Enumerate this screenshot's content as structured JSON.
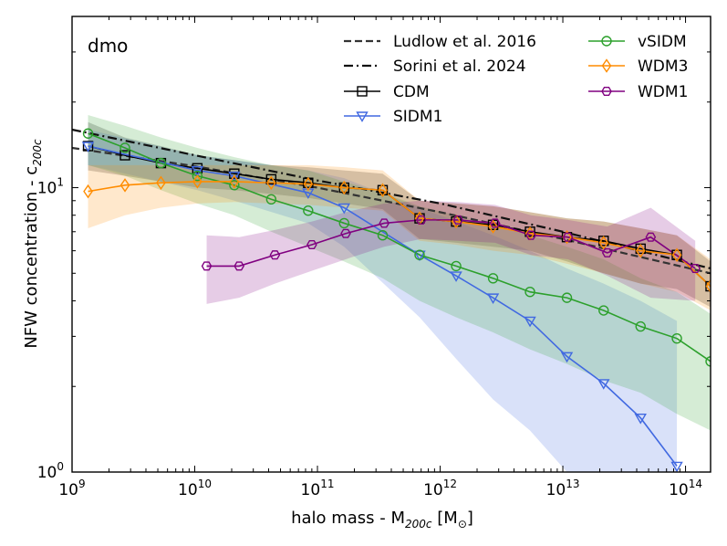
{
  "chart_data": {
    "type": "line",
    "panel_label": "dmo",
    "xlabel_main": "halo mass - M",
    "xlabel_sub": "200c",
    "xlabel_units": " [M",
    "xlabel_sun": "⊙",
    "xlabel_close": "]",
    "ylabel_main": "NFW concentration - c",
    "ylabel_sub": "200c",
    "xscale": "log",
    "yscale": "log",
    "xlim": [
      1000000000.0,
      160000000000000.0
    ],
    "ylim": [
      1,
      40
    ],
    "x_ticks": [
      {
        "value": 1000000000.0,
        "base": "10",
        "exp": "9"
      },
      {
        "value": 10000000000.0,
        "base": "10",
        "exp": "10"
      },
      {
        "value": 100000000000.0,
        "base": "10",
        "exp": "11"
      },
      {
        "value": 1000000000000.0,
        "base": "10",
        "exp": "12"
      },
      {
        "value": 10000000000000.0,
        "base": "10",
        "exp": "13"
      },
      {
        "value": 100000000000000.0,
        "base": "10",
        "exp": "14"
      }
    ],
    "y_ticks": [
      {
        "value": 1,
        "base": "10",
        "exp": "0"
      },
      {
        "value": 10,
        "base": "10",
        "exp": "1"
      }
    ],
    "reference_lines": [
      {
        "name": "Ludlow et al. 2016",
        "dash": "dashed",
        "color": "#333333",
        "x": [
          1000000000.0,
          10000000000.0,
          100000000000.0,
          1000000000000.0,
          10000000000000.0,
          160000000000000.0
        ],
        "y": [
          13.8,
          11.9,
          10.0,
          8.2,
          6.6,
          5.0
        ]
      },
      {
        "name": "Sorini et al. 2024",
        "dash": "dashdot",
        "color": "#111111",
        "x": [
          1000000000.0,
          10000000000.0,
          100000000000.0,
          1000000000000.0,
          10000000000000.0,
          160000000000000.0
        ],
        "y": [
          16.0,
          13.0,
          10.6,
          8.8,
          7.0,
          5.2
        ]
      }
    ],
    "series": [
      {
        "name": "CDM",
        "color": "#000000",
        "marker": "square",
        "x": [
          1350000000.0,
          2700000000.0,
          5300000000.0,
          10500000000.0,
          21000000000.0,
          42000000000.0,
          84000000000.0,
          165000000000.0,
          340000000000.0,
          680000000000.0,
          1350000000000.0,
          2700000000000.0,
          5400000000000.0,
          10800000000000.0,
          21500000000000.0,
          43000000000000.0,
          85000000000000.0,
          160000000000000.0
        ],
        "y": [
          14.0,
          13.0,
          12.2,
          11.7,
          11.2,
          10.7,
          10.4,
          10.0,
          9.8,
          7.8,
          7.6,
          7.4,
          7.0,
          6.7,
          6.5,
          6.1,
          5.8,
          4.5
        ],
        "band_lo": [
          11.5,
          11.0,
          10.5,
          10.0,
          9.8,
          9.5,
          9.2,
          8.8,
          8.4,
          6.6,
          6.4,
          6.2,
          6.0,
          5.5,
          5.0,
          4.6,
          4.4,
          3.8
        ],
        "band_hi": [
          17.0,
          15.0,
          14.0,
          13.0,
          12.5,
          12.0,
          11.8,
          11.5,
          11.2,
          9.0,
          8.8,
          8.6,
          8.2,
          7.8,
          7.6,
          7.2,
          6.8,
          5.5
        ]
      },
      {
        "name": "SIDM1",
        "color": "#4169e1",
        "marker": "triangle-down",
        "x": [
          1350000000.0,
          10500000000.0,
          21000000000.0,
          84000000000.0,
          165000000000.0,
          680000000000.0,
          1350000000000.0,
          2700000000000.0,
          5400000000000.0,
          10800000000000.0,
          21500000000000.0,
          43000000000000.0,
          85000000000000.0
        ],
        "y": [
          14.0,
          11.5,
          11.0,
          9.6,
          8.5,
          5.8,
          4.9,
          4.1,
          3.4,
          2.55,
          2.05,
          1.55,
          1.05
        ],
        "band_lo": [
          12.0,
          9.8,
          9.0,
          7.5,
          6.2,
          3.5,
          2.5,
          1.8,
          1.4,
          1.0,
          1.0,
          1.0,
          1.0
        ],
        "band_hi": [
          16.0,
          13.0,
          12.5,
          11.5,
          10.8,
          8.5,
          7.6,
          6.8,
          6.0,
          5.2,
          4.6,
          4.0,
          3.4
        ]
      },
      {
        "name": "vSIDM",
        "color": "#2ca02c",
        "marker": "circle",
        "x": [
          1350000000.0,
          2700000000.0,
          5300000000.0,
          10500000000.0,
          21000000000.0,
          42000000000.0,
          84000000000.0,
          165000000000.0,
          340000000000.0,
          680000000000.0,
          1350000000000.0,
          2700000000000.0,
          5400000000000.0,
          10800000000000.0,
          21500000000000.0,
          43000000000000.0,
          85000000000000.0,
          160000000000000.0
        ],
        "y": [
          15.5,
          13.8,
          12.2,
          11.0,
          10.2,
          9.1,
          8.3,
          7.5,
          6.8,
          5.8,
          5.3,
          4.8,
          4.3,
          4.1,
          3.7,
          3.25,
          2.95,
          2.45
        ],
        "band_lo": [
          12.0,
          11.0,
          9.8,
          8.8,
          8.0,
          7.0,
          6.2,
          5.5,
          4.8,
          4.0,
          3.5,
          3.1,
          2.7,
          2.4,
          2.1,
          1.9,
          1.6,
          1.4
        ],
        "band_hi": [
          18.0,
          16.5,
          15.0,
          13.8,
          12.8,
          12.0,
          11.5,
          10.5,
          9.6,
          8.6,
          8.0,
          7.4,
          6.8,
          6.2,
          5.6,
          4.8,
          4.3,
          3.6
        ]
      },
      {
        "name": "WDM3",
        "color": "#ff8c00",
        "marker": "diamond",
        "x": [
          1350000000.0,
          2700000000.0,
          5300000000.0,
          10500000000.0,
          21000000000.0,
          42000000000.0,
          84000000000.0,
          165000000000.0,
          340000000000.0,
          680000000000.0,
          1350000000000.0,
          2700000000000.0,
          5400000000000.0,
          10800000000000.0,
          21500000000000.0,
          43000000000000.0,
          85000000000000.0,
          160000000000000.0
        ],
        "y": [
          9.7,
          10.2,
          10.4,
          10.5,
          10.5,
          10.4,
          10.3,
          10.0,
          9.8,
          7.8,
          7.6,
          7.3,
          6.9,
          6.7,
          6.4,
          6.0,
          5.8,
          4.5
        ],
        "band_lo": [
          7.2,
          8.0,
          8.5,
          8.8,
          8.9,
          8.8,
          8.7,
          8.5,
          8.3,
          6.5,
          6.3,
          6.0,
          5.8,
          5.4,
          5.0,
          4.6,
          4.3,
          3.7
        ],
        "band_hi": [
          12.0,
          12.0,
          12.0,
          12.0,
          12.0,
          12.0,
          12.0,
          11.8,
          11.5,
          9.0,
          8.8,
          8.6,
          8.2,
          7.8,
          7.6,
          7.2,
          6.8,
          5.6
        ]
      },
      {
        "name": "WDM1",
        "color": "#800080",
        "marker": "hexagon",
        "x": [
          12500000000.0,
          23000000000.0,
          45000000000.0,
          90000000000.0,
          170000000000.0,
          350000000000.0,
          700000000000.0,
          1400000000000.0,
          2800000000000.0,
          5500000000000.0,
          11000000000000.0,
          23000000000000.0,
          52000000000000.0,
          120000000000000.0
        ],
        "y": [
          5.3,
          5.3,
          5.8,
          6.3,
          6.9,
          7.5,
          7.7,
          7.7,
          7.5,
          6.8,
          6.7,
          5.9,
          6.7,
          5.2
        ],
        "band_lo": [
          3.9,
          4.1,
          4.6,
          5.1,
          5.6,
          6.2,
          6.6,
          6.5,
          6.4,
          5.8,
          5.6,
          4.9,
          4.1,
          4.0
        ],
        "band_hi": [
          6.8,
          6.7,
          7.1,
          7.6,
          8.2,
          8.8,
          9.0,
          8.9,
          8.7,
          8.0,
          7.7,
          7.3,
          8.5,
          6.5
        ]
      }
    ],
    "legend": {
      "placement": "top",
      "col1": [
        "Ludlow et al. 2016",
        "Sorini et al. 2024",
        "CDM",
        "SIDM1"
      ],
      "col2": [
        "vSIDM",
        "WDM3",
        "WDM1"
      ]
    }
  }
}
